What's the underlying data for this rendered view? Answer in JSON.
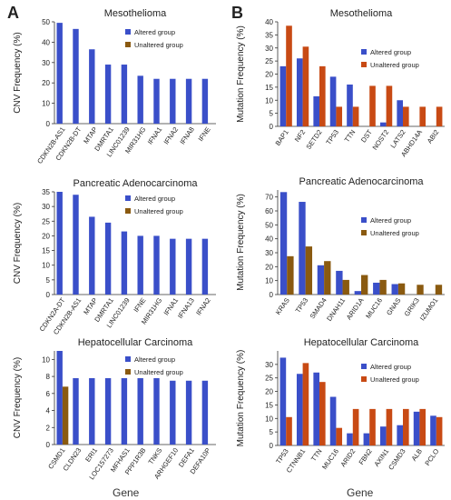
{
  "panel_labels": [
    "A",
    "B"
  ],
  "colors": {
    "altered": "#3a4fc9",
    "unaltered_A": "#8a5a10",
    "unaltered_B_top": "#c84a14",
    "unaltered_B_mid": "#8a5a10",
    "unaltered_B_bot": "#c84a14"
  },
  "xlabel_left": "Gene",
  "xlabel_right": "Gene",
  "chart_data": [
    {
      "type": "bar",
      "panel": "A",
      "title": "Mesothelioma",
      "ylabel": "CNV Frequency (%)",
      "ylim": [
        0,
        50
      ],
      "yticks": [
        0,
        10,
        20,
        30,
        40,
        50
      ],
      "categories": [
        "CDKN2B-AS1",
        "CDKN2B-DT",
        "MTAP",
        "DMRTA1",
        "LINC01239",
        "MIR31HG",
        "IFNA1",
        "IFNA2",
        "IFNA8",
        "IFNE"
      ],
      "series": [
        {
          "name": "Altered group",
          "values": [
            49.5,
            46.5,
            36.5,
            29,
            29,
            23.5,
            22,
            22,
            22,
            22
          ]
        },
        {
          "name": "Unaltered group",
          "values": [
            0,
            0,
            0,
            0,
            0,
            0,
            0,
            0,
            0,
            0
          ]
        }
      ],
      "legend": "top-right"
    },
    {
      "type": "bar",
      "panel": "A",
      "title": "Pancreatic Adenocarcinoma",
      "ylabel": "CNV Frequency (%)",
      "ylim": [
        0,
        35
      ],
      "yticks": [
        0,
        5,
        10,
        15,
        20,
        25,
        30,
        35
      ],
      "categories": [
        "CDKN2A-DT",
        "CDKN2B-AS1",
        "MTAP",
        "DMRTA1",
        "LINC01239",
        "IFNE",
        "MIR31HG",
        "IFNA1",
        "IFNA13",
        "IFNA2"
      ],
      "series": [
        {
          "name": "Altered group",
          "values": [
            35,
            34,
            26.5,
            24.5,
            21.5,
            20,
            20,
            19,
            19,
            19
          ]
        },
        {
          "name": "Unaltered group",
          "values": [
            0,
            0,
            0,
            0,
            0,
            0,
            0,
            0,
            0,
            0
          ]
        }
      ],
      "legend": "top-right"
    },
    {
      "type": "bar",
      "panel": "A",
      "title": "Hepatocellular Carcinoma",
      "ylabel": "CNV Frequency (%)",
      "ylim": [
        0,
        11
      ],
      "yticks": [
        0,
        2,
        4,
        6,
        8,
        10
      ],
      "categories": [
        "CSMD1",
        "CLDN23",
        "ERI1",
        "LOC157273",
        "MFHAS1",
        "PPP1R3B",
        "TNKS",
        "ARHGEF10",
        "DEFA1",
        "DEFA10P"
      ],
      "series": [
        {
          "name": "Altered group",
          "values": [
            11,
            7.8,
            7.8,
            7.8,
            7.8,
            7.8,
            7.8,
            7.5,
            7.5,
            7.5
          ]
        },
        {
          "name": "Unaltered group",
          "values": [
            6.8,
            0,
            0,
            0,
            0,
            0,
            0,
            0,
            0,
            0
          ]
        }
      ],
      "legend": "top-right"
    },
    {
      "type": "bar",
      "panel": "B",
      "title": "Mesothelioma",
      "ylabel": "Mutation Frequency (%)",
      "ylim": [
        0,
        40
      ],
      "yticks": [
        0,
        5,
        10,
        15,
        20,
        25,
        30,
        35,
        40
      ],
      "categories": [
        "BAP1",
        "NF2",
        "SETD2",
        "TP53",
        "TTN",
        "DST",
        "NOST2",
        "LATS2",
        "ABHD14A",
        "ABI2"
      ],
      "series": [
        {
          "name": "Altered group",
          "values": [
            23,
            26,
            11.5,
            19,
            16,
            0,
            1.5,
            10,
            0,
            0
          ]
        },
        {
          "name": "Unaltered group",
          "values": [
            38.5,
            30.5,
            23,
            7.5,
            7.5,
            15.5,
            15.5,
            7.5,
            7.5,
            7.5
          ]
        }
      ],
      "legend": "top-right"
    },
    {
      "type": "bar",
      "panel": "B",
      "title": "Pancreatic Adenocarcinoma",
      "ylabel": "Mutation Frequency (%)",
      "ylim": [
        0,
        75
      ],
      "yticks": [
        0,
        10,
        20,
        30,
        40,
        50,
        60,
        70
      ],
      "categories": [
        "KRAS",
        "TP53",
        "SMAD4",
        "DNAH11",
        "ARID1A",
        "MUC16",
        "GNAS",
        "GRIK3",
        "IZUMO1"
      ],
      "series": [
        {
          "name": "Altered group",
          "values": [
            73.5,
            66.5,
            21,
            17,
            2.5,
            8.5,
            7.5,
            0,
            0
          ]
        },
        {
          "name": "Unaltered group",
          "values": [
            27.5,
            34.5,
            24,
            10.5,
            14,
            10.5,
            8,
            7,
            7
          ]
        }
      ],
      "legend": "top-right"
    },
    {
      "type": "bar",
      "panel": "B",
      "title": "Hepatocellular Carcinoma",
      "ylabel": "Mutation Frequency (%)",
      "ylim": [
        0,
        35
      ],
      "yticks": [
        0,
        5,
        10,
        15,
        20,
        25,
        30
      ],
      "categories": [
        "TP53",
        "CTNNB1",
        "TTN",
        "MUC16",
        "ARID2",
        "FBN2",
        "AXIN1",
        "CSMD3",
        "ALB",
        "PCLO"
      ],
      "series": [
        {
          "name": "Altered group",
          "values": [
            32.5,
            26.5,
            27,
            18,
            4.5,
            4.5,
            7,
            7.5,
            12.5,
            11
          ]
        },
        {
          "name": "Unaltered group",
          "values": [
            10.5,
            30.5,
            23.5,
            6.5,
            13.5,
            13.5,
            13.5,
            13.5,
            13.5,
            10.5
          ]
        }
      ],
      "legend": "top-right"
    }
  ]
}
